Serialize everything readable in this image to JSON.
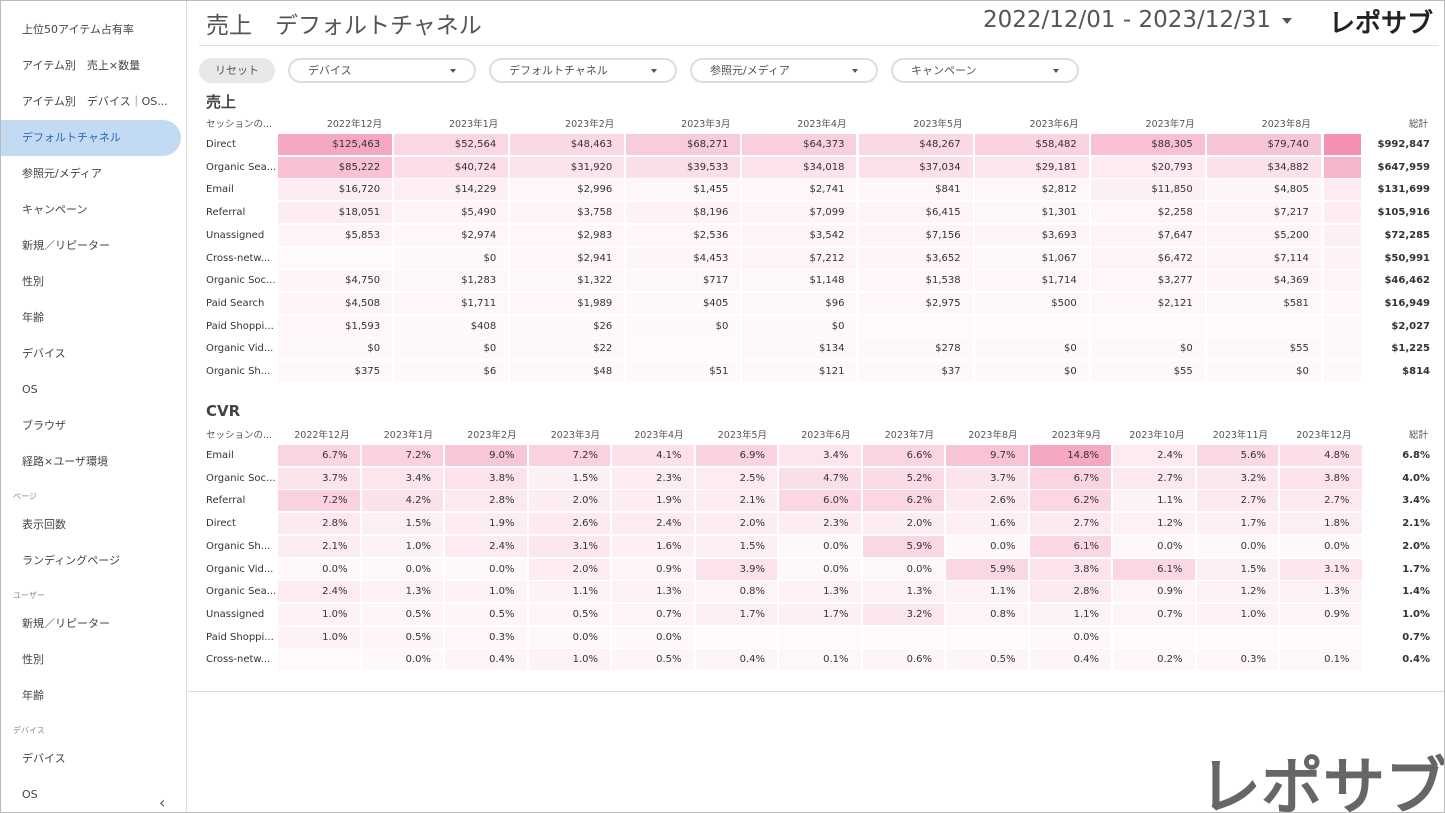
{
  "header": {
    "title": "売上　デフォルトチャネル",
    "date_range": "2022/12/01 - 2023/12/31",
    "logo": "レポサブ"
  },
  "sidebar": {
    "items": [
      "上位50アイテム占有率",
      "アイテム別　売上×数量",
      "アイテム別　デバイス｜OS...",
      "デフォルトチャネル",
      "参照元/メディア",
      "キャンペーン",
      "新規／リピーター",
      "性別",
      "年齢",
      "デバイス",
      "OS",
      "ブラウザ",
      "経路×ユーザ環境"
    ],
    "active": 3,
    "sections": [
      {
        "title": "ページ",
        "items": [
          "表示回数",
          "ランディングページ"
        ]
      },
      {
        "title": "ユーザー",
        "items": [
          "新規／リピーター",
          "性別",
          "年齢"
        ]
      },
      {
        "title": "デバイス",
        "items": [
          "デバイス",
          "OS"
        ]
      }
    ]
  },
  "filters": {
    "reset": "リセット",
    "dropdowns": [
      "デバイス",
      "デフォルトチャネル",
      "参照元/メディア",
      "キャンペーン"
    ]
  },
  "tables": [
    {
      "title": "売上",
      "header": [
        "セッションの...",
        "2022年12月",
        "2023年1月",
        "2023年2月",
        "2023年3月",
        "2023年4月",
        "2023年5月",
        "2023年6月",
        "2023年7月",
        "2023年8月",
        "総計"
      ],
      "rows": [
        [
          "Direct",
          "$125,463",
          "$52,564",
          "$48,463",
          "$68,271",
          "$64,373",
          "$48,267",
          "$58,482",
          "$88,305",
          "$79,740",
          "$992,847"
        ],
        [
          "Organic Sea...",
          "$85,222",
          "$40,724",
          "$31,920",
          "$39,533",
          "$34,018",
          "$37,034",
          "$29,181",
          "$20,793",
          "$34,882",
          "$647,959"
        ],
        [
          "Email",
          "$16,720",
          "$14,229",
          "$2,996",
          "$1,455",
          "$2,741",
          "$841",
          "$2,812",
          "$11,850",
          "$4,805",
          "$131,699"
        ],
        [
          "Referral",
          "$18,051",
          "$5,490",
          "$3,758",
          "$8,196",
          "$7,099",
          "$6,415",
          "$1,301",
          "$2,258",
          "$7,217",
          "$105,916"
        ],
        [
          "Unassigned",
          "$5,853",
          "$2,974",
          "$2,983",
          "$2,536",
          "$3,542",
          "$7,156",
          "$3,693",
          "$7,647",
          "$5,200",
          "$72,285"
        ],
        [
          "Cross-netw...",
          null,
          "$0",
          "$2,941",
          "$4,453",
          "$7,212",
          "$3,652",
          "$1,067",
          "$6,472",
          "$7,114",
          "$50,991"
        ],
        [
          "Organic Soc...",
          "$4,750",
          "$1,283",
          "$1,322",
          "$717",
          "$1,148",
          "$1,538",
          "$1,714",
          "$3,277",
          "$4,369",
          "$46,462"
        ],
        [
          "Paid Search",
          "$4,508",
          "$1,711",
          "$1,989",
          "$405",
          "$96",
          "$2,975",
          "$500",
          "$2,121",
          "$581",
          "$16,949"
        ],
        [
          "Paid Shoppi...",
          "$1,593",
          "$408",
          "$26",
          "$0",
          "$0",
          null,
          null,
          null,
          null,
          "$2,027"
        ],
        [
          "Organic Vid...",
          "$0",
          "$0",
          "$22",
          null,
          "$134",
          "$278",
          "$0",
          "$0",
          "$55",
          "$1,225"
        ],
        [
          "Organic Sh...",
          "$375",
          "$6",
          "$48",
          "$51",
          "$121",
          "$37",
          "$0",
          "$55",
          "$0",
          "$814"
        ]
      ]
    },
    {
      "title": "CVR",
      "header": [
        "セッションの...",
        "2022年12月",
        "2023年1月",
        "2023年2月",
        "2023年3月",
        "2023年4月",
        "2023年5月",
        "2023年6月",
        "2023年7月",
        "2023年8月",
        "2023年9月",
        "2023年10月",
        "2023年11月",
        "2023年12月",
        "総計"
      ],
      "rows": [
        [
          "Email",
          "6.7%",
          "7.2%",
          "9.0%",
          "7.2%",
          "4.1%",
          "6.9%",
          "3.4%",
          "6.6%",
          "9.7%",
          "14.8%",
          "2.4%",
          "5.6%",
          "4.8%",
          "6.8%"
        ],
        [
          "Organic Soc...",
          "3.7%",
          "3.4%",
          "3.8%",
          "1.5%",
          "2.3%",
          "2.5%",
          "4.7%",
          "5.2%",
          "3.7%",
          "6.7%",
          "2.7%",
          "3.2%",
          "3.8%",
          "4.0%"
        ],
        [
          "Referral",
          "7.2%",
          "4.2%",
          "2.8%",
          "2.0%",
          "1.9%",
          "2.1%",
          "6.0%",
          "6.2%",
          "2.6%",
          "6.2%",
          "1.1%",
          "2.7%",
          "2.7%",
          "3.4%"
        ],
        [
          "Direct",
          "2.8%",
          "1.5%",
          "1.9%",
          "2.6%",
          "2.4%",
          "2.0%",
          "2.3%",
          "2.0%",
          "1.6%",
          "2.7%",
          "1.2%",
          "1.7%",
          "1.8%",
          "2.1%"
        ],
        [
          "Organic Sh...",
          "2.1%",
          "1.0%",
          "2.4%",
          "3.1%",
          "1.6%",
          "1.5%",
          "0.0%",
          "5.9%",
          "0.0%",
          "6.1%",
          "0.0%",
          "0.0%",
          "0.0%",
          "2.0%"
        ],
        [
          "Organic Vid...",
          "0.0%",
          "0.0%",
          "0.0%",
          "2.0%",
          "0.9%",
          "3.9%",
          "0.0%",
          "0.0%",
          "5.9%",
          "3.8%",
          "6.1%",
          "1.5%",
          "3.1%",
          "1.7%"
        ],
        [
          "Organic Sea...",
          "2.4%",
          "1.3%",
          "1.0%",
          "1.1%",
          "1.3%",
          "0.8%",
          "1.3%",
          "1.3%",
          "1.1%",
          "2.8%",
          "0.9%",
          "1.2%",
          "1.3%",
          "1.4%"
        ],
        [
          "Unassigned",
          "1.0%",
          "0.5%",
          "0.5%",
          "0.5%",
          "0.7%",
          "1.7%",
          "1.7%",
          "3.2%",
          "0.8%",
          "1.1%",
          "0.7%",
          "1.0%",
          "0.9%",
          "1.0%"
        ],
        [
          "Paid Shoppi...",
          "1.0%",
          "0.5%",
          "0.3%",
          "0.0%",
          "0.0%",
          null,
          null,
          null,
          null,
          "0.0%",
          null,
          null,
          null,
          "0.7%"
        ],
        [
          "Cross-netw...",
          null,
          "0.0%",
          "0.4%",
          "1.0%",
          "0.5%",
          "0.4%",
          "0.1%",
          "0.6%",
          "0.5%",
          "0.4%",
          "0.2%",
          "0.3%",
          "0.1%",
          "0.4%"
        ]
      ]
    }
  ],
  "watermark": "レポサブ"
}
